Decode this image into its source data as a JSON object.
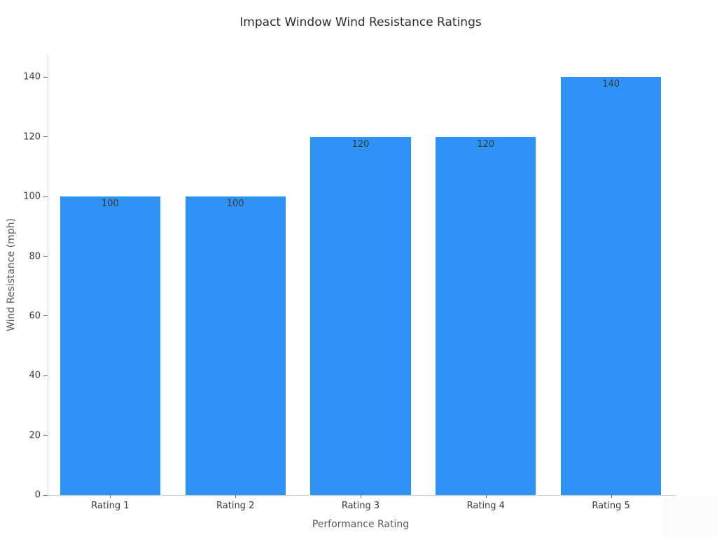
{
  "chart_data": {
    "type": "bar",
    "title": "Impact Window Wind Resistance Ratings",
    "xlabel": "Performance Rating",
    "ylabel": "Wind Resistance (mph)",
    "categories": [
      "Rating 1",
      "Rating 2",
      "Rating 3",
      "Rating 4",
      "Rating 5"
    ],
    "values": [
      100,
      100,
      120,
      120,
      140
    ],
    "bar_labels": [
      "100",
      "100",
      "120",
      "120",
      "140"
    ],
    "yticks": [
      0,
      20,
      40,
      60,
      80,
      100,
      120,
      140
    ],
    "ylim": [
      0,
      147.6
    ],
    "grid": false,
    "legend": null,
    "bar_width_fraction": 0.8,
    "colors": {
      "bar": "#2e93f7",
      "bar_value_label": "#34383d",
      "title_text": "#2d2d2d",
      "axis_title_text": "#595959",
      "tick_label_text": "#3a3a3a",
      "spine": "#d5d5d5",
      "background": "#ffffff"
    }
  }
}
